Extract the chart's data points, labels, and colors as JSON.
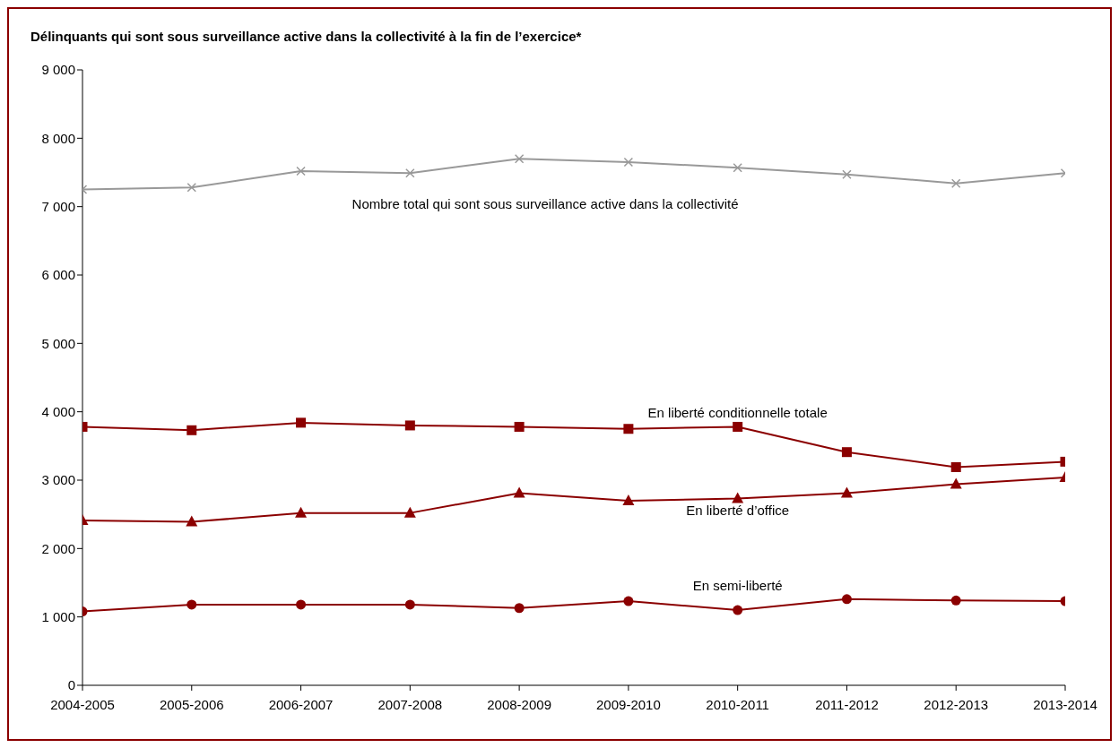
{
  "chart_data": {
    "type": "line",
    "title": "Délinquants qui sont sous surveillance active dans la collectivité à la fin de l’exercice*",
    "categories": [
      "2004-2005",
      "2005-2006",
      "2006-2007",
      "2007-2008",
      "2008-2009",
      "2009-2010",
      "2010-2011",
      "2011-2012",
      "2012-2013",
      "2013-2014"
    ],
    "series": [
      {
        "name": "Nombre total qui sont sous surveillance active dans la collectivité",
        "color": "#999999",
        "marker": "cross",
        "values": [
          7250,
          7280,
          7520,
          7490,
          7700,
          7650,
          7570,
          7470,
          7340,
          7490
        ]
      },
      {
        "name": "En liberté conditionnelle totale",
        "color": "#8b0000",
        "marker": "square",
        "values": [
          3780,
          3730,
          3840,
          3800,
          3780,
          3750,
          3780,
          3410,
          3190,
          3270
        ]
      },
      {
        "name": "En liberté d’office",
        "color": "#8b0000",
        "marker": "triangle",
        "values": [
          2410,
          2390,
          2520,
          2520,
          2810,
          2700,
          2730,
          2810,
          2940,
          3040
        ]
      },
      {
        "name": "En semi-liberté",
        "color": "#8b0000",
        "marker": "circle",
        "values": [
          1080,
          1180,
          1180,
          1180,
          1130,
          1230,
          1100,
          1260,
          1240,
          1230
        ]
      }
    ],
    "ylim": [
      0,
      9000
    ],
    "yticks": [
      0,
      {
        "value": 1000,
        "label": "1 000"
      },
      {
        "value": 2000,
        "label": "2 000"
      },
      {
        "value": 3000,
        "label": "3 000"
      },
      {
        "value": 4000,
        "label": "4 000"
      },
      {
        "value": 5000,
        "label": "5 000"
      },
      {
        "value": 6000,
        "label": "6 000"
      },
      {
        "value": 7000,
        "label": "7 000"
      },
      {
        "value": 8000,
        "label": "8 000"
      },
      {
        "value": 9000,
        "label": "9 000"
      }
    ],
    "grid": false,
    "legend": false
  }
}
